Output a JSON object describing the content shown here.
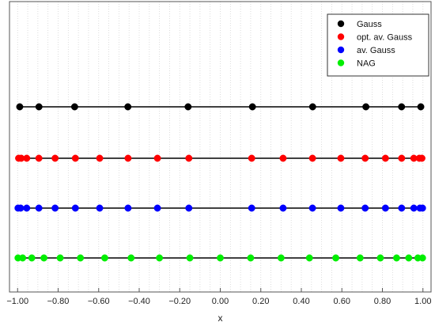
{
  "chart_data": {
    "type": "scatter",
    "xlabel": "x",
    "xlim": [
      -1.04,
      1.04
    ],
    "x_ticks": [
      -1.0,
      -0.8,
      -0.6,
      -0.4,
      -0.2,
      0.0,
      0.2,
      0.4,
      0.6,
      0.8,
      1.0
    ],
    "x_tick_labels": [
      "−1.00",
      "−0.80",
      "−0.60",
      "−0.40",
      "−0.20",
      "0.00",
      "0.20",
      "0.40",
      "0.60",
      "0.80",
      "1.00"
    ],
    "grid": "vertical dotted",
    "legend_position": "top-right",
    "legend": [
      "Gauss",
      "opt. av. Gauss",
      "av. Gauss",
      "NAG"
    ],
    "series": [
      {
        "name": "Gauss",
        "color": "#000000",
        "x": [
          -0.9894,
          -0.8946,
          -0.7185,
          -0.4558,
          -0.1587,
          0.1587,
          0.4558,
          0.7185,
          0.8946,
          0.9894
        ]
      },
      {
        "name": "opt. av. Gauss",
        "color": "#ff0000",
        "x": [
          -0.995,
          -0.982,
          -0.955,
          -0.895,
          -0.815,
          -0.715,
          -0.595,
          -0.455,
          -0.31,
          -0.155,
          0.155,
          0.31,
          0.455,
          0.595,
          0.715,
          0.815,
          0.895,
          0.955,
          0.982,
          0.995
        ]
      },
      {
        "name": "av. Gauss",
        "color": "#0000ff",
        "x": [
          -0.998,
          -0.985,
          -0.955,
          -0.895,
          -0.815,
          -0.715,
          -0.595,
          -0.455,
          -0.31,
          -0.155,
          0.155,
          0.31,
          0.455,
          0.595,
          0.715,
          0.815,
          0.895,
          0.955,
          0.985,
          0.998
        ]
      },
      {
        "name": "NAG",
        "color": "#00ee00",
        "x": [
          -0.998,
          -0.975,
          -0.93,
          -0.87,
          -0.79,
          -0.69,
          -0.57,
          -0.44,
          -0.3,
          -0.15,
          0.0,
          0.15,
          0.3,
          0.44,
          0.57,
          0.69,
          0.79,
          0.87,
          0.93,
          0.975,
          0.998
        ]
      }
    ]
  }
}
